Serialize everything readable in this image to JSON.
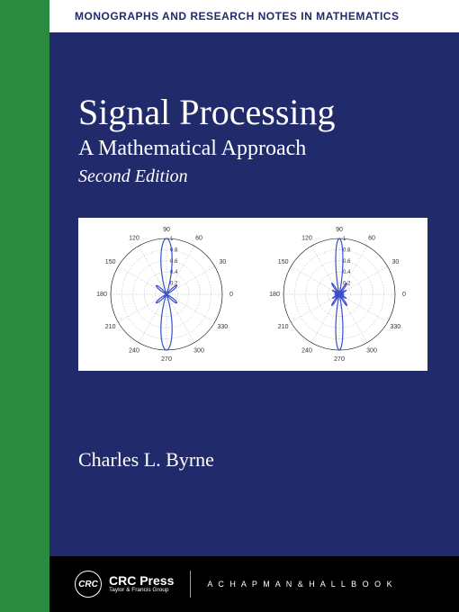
{
  "colors": {
    "spine": "#2a8a3f",
    "main_bg": "#212a6a",
    "series_bar_bg": "#ffffff",
    "series_text": "#212a6a",
    "title_text": "#ffffff",
    "chart_bg": "#ffffff",
    "chart_axis": "#000000",
    "chart_grid": "#b0b0b0",
    "chart_curve": "#3a4fc9",
    "chart_label": "#333333",
    "footer_bg": "#000000"
  },
  "series": "MONOGRAPHS AND RESEARCH NOTES IN MATHEMATICS",
  "title": "Signal Processing",
  "subtitle": "A Mathematical Approach",
  "edition": "Second Edition",
  "author": "Charles L. Byrne",
  "publisher": {
    "logo_text": "CRC",
    "name": "CRC Press",
    "tagline1": "Taylor & Francis Group",
    "imprint": "A  C H A P M A N  &  H A L L  B O O K"
  },
  "charts": {
    "angle_labels": [
      0,
      30,
      60,
      90,
      120,
      150,
      180,
      210,
      240,
      270,
      300,
      330
    ],
    "radial_labels": [
      0.2,
      0.4,
      0.6,
      0.8,
      1
    ],
    "radial_max": 1.0,
    "label_fontsize": 7,
    "left": {
      "type": "polar",
      "lobes": [
        {
          "angle_deg": 90,
          "amplitude": 1.0,
          "half_width_deg": 22
        },
        {
          "angle_deg": 270,
          "amplitude": 1.0,
          "half_width_deg": 22
        },
        {
          "angle_deg": 40,
          "amplitude": 0.24,
          "half_width_deg": 16
        },
        {
          "angle_deg": 140,
          "amplitude": 0.24,
          "half_width_deg": 16
        },
        {
          "angle_deg": 220,
          "amplitude": 0.24,
          "half_width_deg": 16
        },
        {
          "angle_deg": 320,
          "amplitude": 0.24,
          "half_width_deg": 16
        }
      ]
    },
    "right": {
      "type": "polar",
      "lobes": [
        {
          "angle_deg": 90,
          "amplitude": 1.0,
          "half_width_deg": 14
        },
        {
          "angle_deg": 270,
          "amplitude": 1.0,
          "half_width_deg": 14
        },
        {
          "angle_deg": 56,
          "amplitude": 0.24,
          "half_width_deg": 11
        },
        {
          "angle_deg": 124,
          "amplitude": 0.24,
          "half_width_deg": 11
        },
        {
          "angle_deg": 236,
          "amplitude": 0.24,
          "half_width_deg": 11
        },
        {
          "angle_deg": 304,
          "amplitude": 0.24,
          "half_width_deg": 11
        },
        {
          "angle_deg": 30,
          "amplitude": 0.14,
          "half_width_deg": 10
        },
        {
          "angle_deg": 150,
          "amplitude": 0.14,
          "half_width_deg": 10
        },
        {
          "angle_deg": 210,
          "amplitude": 0.14,
          "half_width_deg": 10
        },
        {
          "angle_deg": 330,
          "amplitude": 0.14,
          "half_width_deg": 10
        },
        {
          "angle_deg": 10,
          "amplitude": 0.08,
          "half_width_deg": 8
        },
        {
          "angle_deg": 170,
          "amplitude": 0.08,
          "half_width_deg": 8
        },
        {
          "angle_deg": 190,
          "amplitude": 0.08,
          "half_width_deg": 8
        },
        {
          "angle_deg": 350,
          "amplitude": 0.08,
          "half_width_deg": 8
        }
      ]
    }
  }
}
